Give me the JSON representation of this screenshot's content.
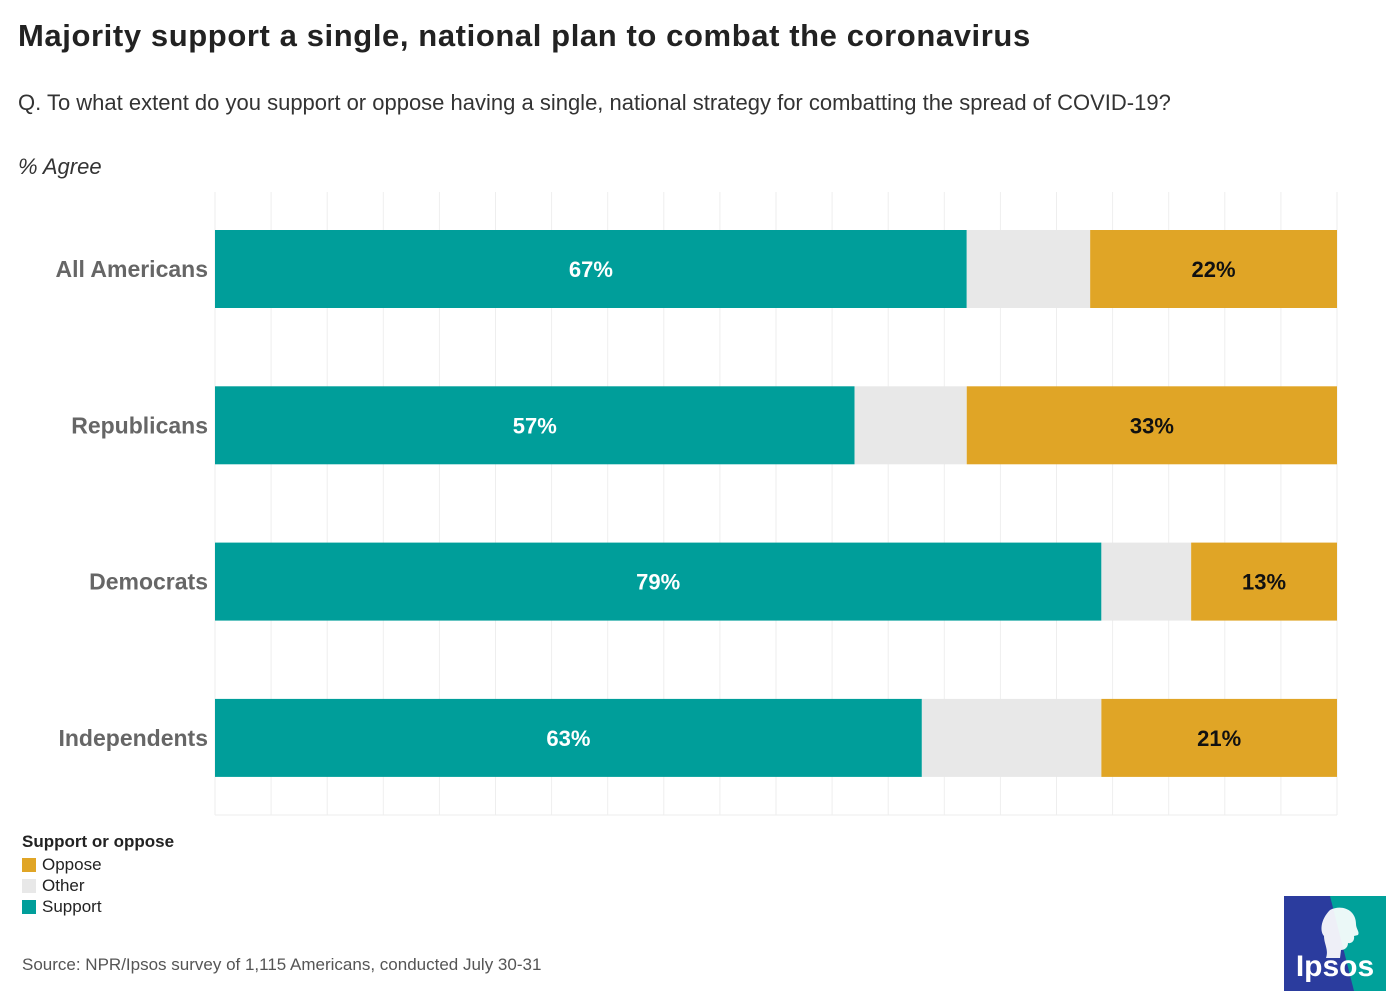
{
  "title": "Majority support a single, national plan to combat the coronavirus",
  "subtitle": "Q. To what extent do you support or oppose having a single, national strategy for combatting the spread of COVID-19?",
  "unit_label": "% Agree",
  "legend": {
    "title": "Support or oppose",
    "items": [
      {
        "label": "Oppose",
        "color": "#e0a526"
      },
      {
        "label": "Other",
        "color": "#e8e8e8"
      },
      {
        "label": "Support",
        "color": "#009e9a"
      }
    ]
  },
  "source": "Source: NPR/Ipsos survey of 1,115 Americans, conducted July 30-31",
  "logo_text": "Ipsos",
  "colors": {
    "support": "#009e9a",
    "other": "#e8e8e8",
    "oppose": "#e0a526",
    "logo_blue": "#2b3c9e",
    "logo_teal": "#00a19a"
  },
  "chart_data": {
    "type": "bar",
    "orientation": "horizontal",
    "stacked": true,
    "categories": [
      "All Americans",
      "Republicans",
      "Democrats",
      "Independents"
    ],
    "series": [
      {
        "name": "Support",
        "values": [
          67,
          57,
          79,
          63
        ],
        "labels": [
          "67%",
          "57%",
          "79%",
          "63%"
        ]
      },
      {
        "name": "Other",
        "values": [
          11,
          10,
          8,
          16
        ]
      },
      {
        "name": "Oppose",
        "values": [
          22,
          33,
          13,
          21
        ],
        "labels": [
          "22%",
          "33%",
          "13%",
          "21%"
        ]
      }
    ],
    "xlim": [
      0,
      100
    ],
    "grid": true,
    "legend_position": "bottom-left"
  }
}
